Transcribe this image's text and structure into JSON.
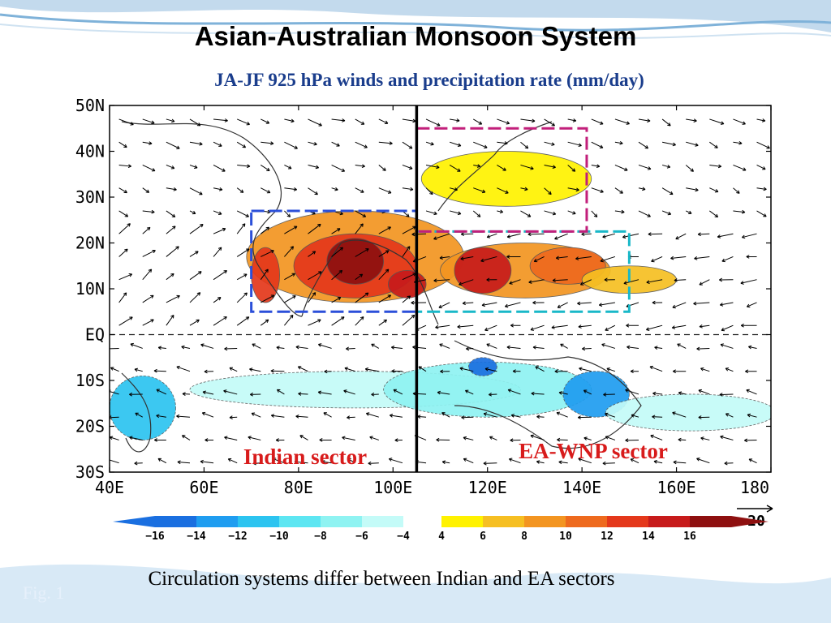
{
  "slide": {
    "title": "Asian-Australian Monsoon System",
    "caption": "Circulation systems differ between Indian and EA sectors",
    "fig_label": "Fig. 1"
  },
  "chart_data": {
    "type": "heatmap",
    "title": "JA-JF  925 hPa winds and precipitation rate (mm/day)",
    "x_ticks": [
      "40E",
      "60E",
      "80E",
      "100E",
      "120E",
      "140E",
      "160E",
      "180"
    ],
    "x_values": [
      40,
      60,
      80,
      100,
      120,
      140,
      160,
      180
    ],
    "y_ticks": [
      "50N",
      "40N",
      "30N",
      "20N",
      "10N",
      "EQ",
      "10S",
      "20S",
      "30S"
    ],
    "y_values": [
      50,
      40,
      30,
      20,
      10,
      0,
      -10,
      -20,
      -30
    ],
    "xlim": [
      40,
      180
    ],
    "ylim": [
      -30,
      50
    ],
    "colorbar": {
      "labels": [
        "-16",
        "-14",
        "-12",
        "-10",
        "-8",
        "-6",
        "-4",
        "4",
        "6",
        "8",
        "10",
        "12",
        "14",
        "16"
      ],
      "colors": [
        "#1a6fe0",
        "#1f9df0",
        "#2cc4f0",
        "#5de6f2",
        "#8ff3f2",
        "#c4fbf8",
        "#ffffff",
        "#fff200",
        "#f6bf22",
        "#f39521",
        "#ee6a1e",
        "#e4381b",
        "#c71b1b",
        "#8e1010"
      ]
    },
    "wind_scale_label": "20",
    "sectors": [
      {
        "label": "Indian sector",
        "color": "#d81b1b"
      },
      {
        "label": "EA-WNP sector",
        "color": "#d81b1b"
      }
    ],
    "boxes": [
      {
        "lon": [
          70,
          105
        ],
        "lat": [
          5,
          27
        ],
        "color": "#2b4fd9"
      },
      {
        "lon": [
          105,
          150
        ],
        "lat": [
          5,
          22.5
        ],
        "color": "#19b8c8"
      },
      {
        "lon": [
          105,
          141
        ],
        "lat": [
          22.5,
          45
        ],
        "color": "#c21f7a"
      }
    ],
    "divider_lon": 105,
    "precip": [
      {
        "lon": 92,
        "lat": 17,
        "rx": 23,
        "ry": 10,
        "v": 8
      },
      {
        "lon": 92,
        "lat": 15,
        "rx": 13,
        "ry": 7,
        "v": 12
      },
      {
        "lon": 92,
        "lat": 16,
        "rx": 6,
        "ry": 5,
        "v": 16
      },
      {
        "lon": 73,
        "lat": 13,
        "rx": 3,
        "ry": 6,
        "v": 12
      },
      {
        "lon": 103,
        "lat": 11,
        "rx": 4,
        "ry": 3,
        "v": 14
      },
      {
        "lon": 128,
        "lat": 14,
        "rx": 18,
        "ry": 6,
        "v": 8
      },
      {
        "lon": 119,
        "lat": 14,
        "rx": 6,
        "ry": 5,
        "v": 14
      },
      {
        "lon": 137,
        "lat": 15,
        "rx": 8,
        "ry": 4,
        "v": 10
      },
      {
        "lon": 150,
        "lat": 12,
        "rx": 10,
        "ry": 3,
        "v": 6
      },
      {
        "lon": 124,
        "lat": 34,
        "rx": 18,
        "ry": 6,
        "v": 4
      },
      {
        "lon": 92,
        "lat": -12,
        "rx": 35,
        "ry": 4,
        "v": -6
      },
      {
        "lon": 47,
        "lat": -16,
        "rx": 7,
        "ry": 7,
        "v": -12
      },
      {
        "lon": 120,
        "lat": -12,
        "rx": 22,
        "ry": 6,
        "v": -8
      },
      {
        "lon": 143,
        "lat": -13,
        "rx": 7,
        "ry": 5,
        "v": -14
      },
      {
        "lon": 163,
        "lat": -17,
        "rx": 18,
        "ry": 4,
        "v": -6
      },
      {
        "lon": 119,
        "lat": -7,
        "rx": 3,
        "ry": 2,
        "v": -16
      }
    ]
  }
}
